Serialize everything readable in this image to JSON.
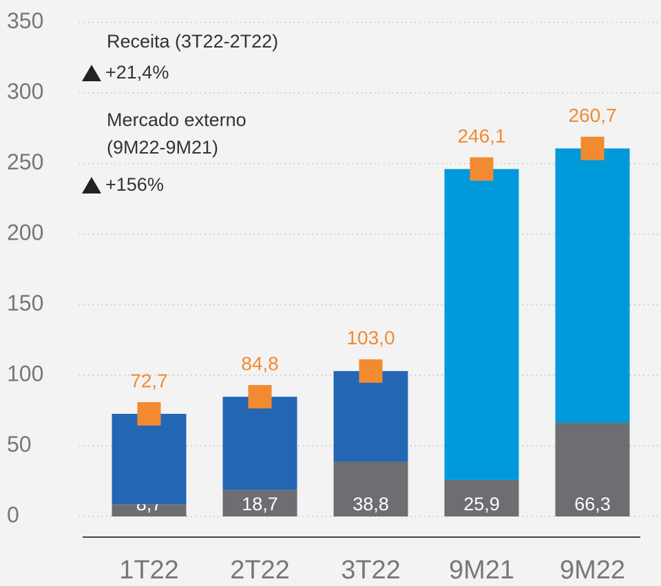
{
  "chart_data": {
    "type": "stacked-bar",
    "categories": [
      "1T22",
      "2T22",
      "3T22",
      "9M21",
      "9M22"
    ],
    "series": [
      {
        "color": "#6d6e71",
        "values": [
          8.7,
          18.7,
          38.8,
          25.9,
          66.3
        ],
        "value_labels": [
          "8,7",
          "18,7",
          "38,8",
          "25,9",
          "66,3"
        ]
      },
      {
        "colors": [
          "#2367b4",
          "#2367b4",
          "#2367b4",
          "#0099da",
          "#0099da"
        ],
        "values": [
          64.0,
          66.1,
          64.2,
          220.2,
          194.4
        ]
      }
    ],
    "totals": {
      "color": "#f28a30",
      "values": [
        72.7,
        84.8,
        103.0,
        246.1,
        260.7
      ],
      "value_labels": [
        "72,7",
        "84,8",
        "103,0",
        "246,1",
        "260,7"
      ]
    },
    "annotations": [
      "Receita (3T22-2T22)",
      "+21,4%",
      "Mercado externo",
      "(9M22-9M21)",
      "+156%"
    ],
    "ylim": [
      0,
      350
    ],
    "yticks": [
      0,
      50,
      100,
      150,
      200,
      250,
      300,
      350
    ],
    "grid": true
  }
}
